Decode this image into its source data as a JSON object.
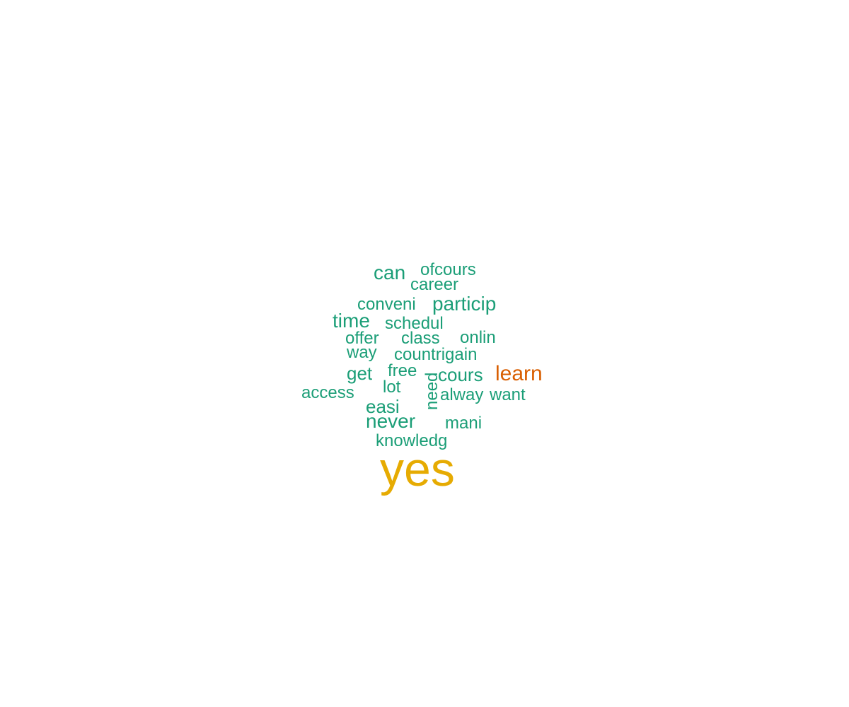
{
  "chart_data": {
    "type": "wordcloud",
    "words": [
      {
        "word": "yes",
        "freq": 10,
        "color": "#E6AB02"
      },
      {
        "word": "learn",
        "freq": 4,
        "color": "#D95F02"
      },
      {
        "word": "can",
        "freq": 3,
        "color": "#1B9E77"
      },
      {
        "word": "particip",
        "freq": 3,
        "color": "#1B9E77"
      },
      {
        "word": "time",
        "freq": 3,
        "color": "#1B9E77"
      },
      {
        "word": "never",
        "freq": 3,
        "color": "#1B9E77"
      },
      {
        "word": "get",
        "freq": 3,
        "color": "#1B9E77"
      },
      {
        "word": "cours",
        "freq": 3,
        "color": "#1B9E77"
      },
      {
        "word": "easi",
        "freq": 3,
        "color": "#1B9E77"
      },
      {
        "word": "ofcours",
        "freq": 2,
        "color": "#1B9E77"
      },
      {
        "word": "career",
        "freq": 2,
        "color": "#1B9E77"
      },
      {
        "word": "conveni",
        "freq": 2,
        "color": "#1B9E77"
      },
      {
        "word": "schedul",
        "freq": 2,
        "color": "#1B9E77"
      },
      {
        "word": "offer",
        "freq": 2,
        "color": "#1B9E77"
      },
      {
        "word": "class",
        "freq": 2,
        "color": "#1B9E77"
      },
      {
        "word": "onlin",
        "freq": 2,
        "color": "#1B9E77"
      },
      {
        "word": "way",
        "freq": 2,
        "color": "#1B9E77"
      },
      {
        "word": "countrigain",
        "freq": 2,
        "color": "#1B9E77"
      },
      {
        "word": "free",
        "freq": 2,
        "color": "#1B9E77"
      },
      {
        "word": "lot",
        "freq": 2,
        "color": "#1B9E77"
      },
      {
        "word": "access",
        "freq": 2,
        "color": "#1B9E77"
      },
      {
        "word": "need",
        "freq": 2,
        "color": "#1B9E77"
      },
      {
        "word": "alway",
        "freq": 2,
        "color": "#1B9E77"
      },
      {
        "word": "want",
        "freq": 2,
        "color": "#1B9E77"
      },
      {
        "word": "mani",
        "freq": 2,
        "color": "#1B9E77"
      },
      {
        "word": "knowledg",
        "freq": 2,
        "color": "#1B9E77"
      }
    ]
  }
}
